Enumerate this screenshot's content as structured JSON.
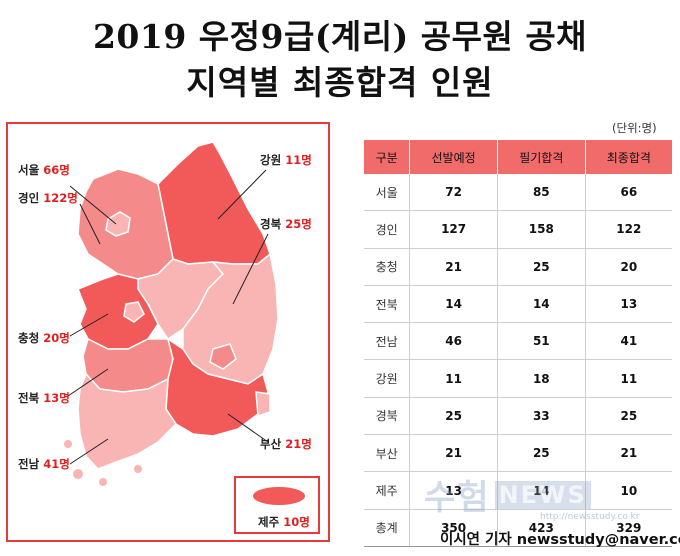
{
  "title": {
    "line1": "2019 우정9급(계리) 공무원 공채",
    "line2": "지역별 최종합격 인원"
  },
  "map": {
    "labels": [
      {
        "region": "서울",
        "count": "66명"
      },
      {
        "region": "경인",
        "count": "122명"
      },
      {
        "region": "강원",
        "count": "11명"
      },
      {
        "region": "경북",
        "count": "25명"
      },
      {
        "region": "충청",
        "count": "20명"
      },
      {
        "region": "전북",
        "count": "13명"
      },
      {
        "region": "부산",
        "count": "21명"
      },
      {
        "region": "전남",
        "count": "41명"
      },
      {
        "region": "제주",
        "count": "10명"
      }
    ],
    "colors": {
      "dark": "#f25a5a",
      "mid": "#f58a8a",
      "light": "#f9b4b4",
      "border": "#e83a3a"
    }
  },
  "table": {
    "unit": "(단위:명)",
    "headers": [
      "구분",
      "선발예정",
      "필기합격",
      "최종합격"
    ],
    "rows": [
      [
        "서울",
        "72",
        "85",
        "66"
      ],
      [
        "경인",
        "127",
        "158",
        "122"
      ],
      [
        "충청",
        "21",
        "25",
        "20"
      ],
      [
        "전북",
        "14",
        "14",
        "13"
      ],
      [
        "전남",
        "46",
        "51",
        "41"
      ],
      [
        "강원",
        "11",
        "18",
        "11"
      ],
      [
        "경북",
        "25",
        "33",
        "25"
      ],
      [
        "부산",
        "21",
        "25",
        "21"
      ],
      [
        "제주",
        "13",
        "14",
        "10"
      ],
      [
        "총계",
        "350",
        "423",
        "329"
      ]
    ]
  },
  "watermark": {
    "text": "수험",
    "news": "NEWS",
    "url": "http://newsstudy.co.kr"
  },
  "credit": "이시연 기자 newsstudy@naver.com"
}
